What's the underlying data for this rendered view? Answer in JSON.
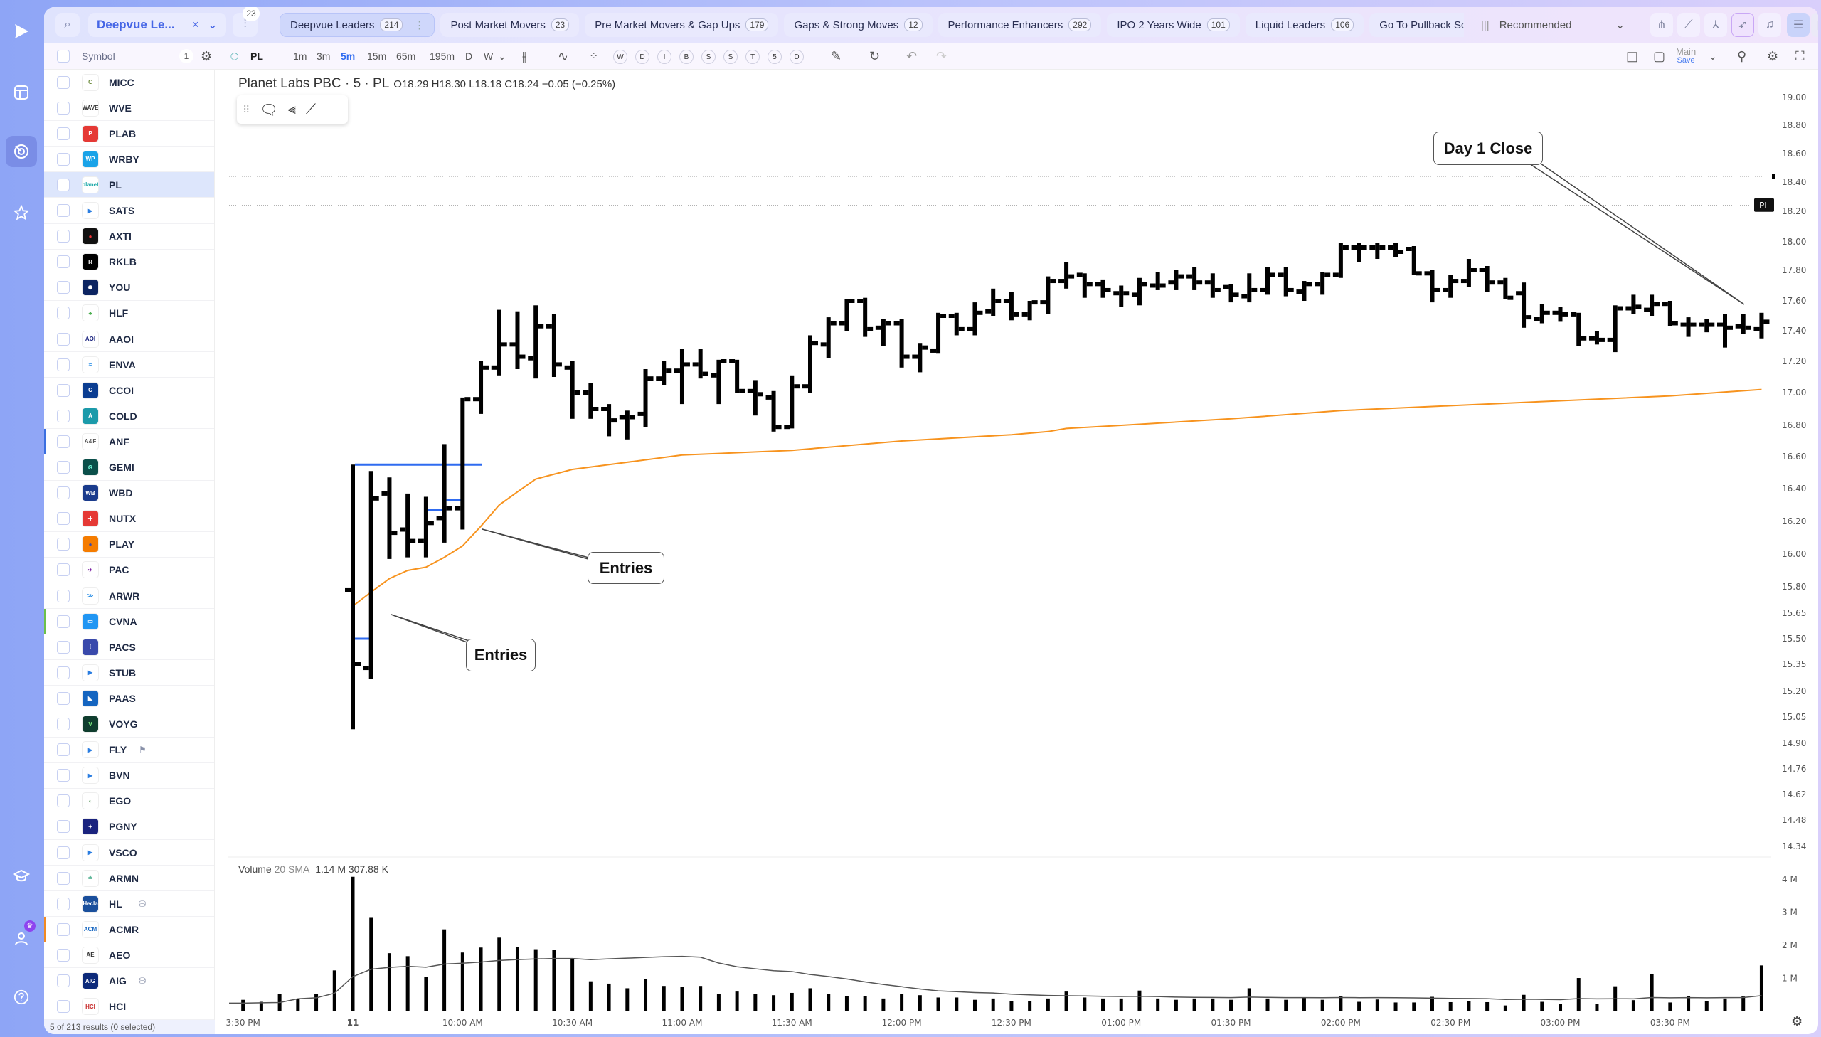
{
  "rail": {
    "items": [
      {
        "icon": "play-logo-icon"
      },
      {
        "icon": "layout-grid-icon"
      },
      {
        "icon": "radar-icon",
        "active": true
      },
      {
        "icon": "star-icon"
      },
      {
        "icon": "graduation-cap-icon"
      },
      {
        "icon": "user-crown-icon"
      },
      {
        "icon": "help-icon"
      }
    ]
  },
  "topbar": {
    "watchlist": "Deepvue Le...",
    "filter_badge": "23",
    "tabs": [
      {
        "label": "Deepvue Leaders",
        "count": "214",
        "active": true
      },
      {
        "label": "Post Market Movers",
        "count": "23"
      },
      {
        "label": "Pre Market Movers & Gap Ups",
        "count": "179"
      },
      {
        "label": "Gaps & Strong Moves",
        "count": "12"
      },
      {
        "label": "Performance Enhancers",
        "count": "292"
      },
      {
        "label": "IPO 2 Years Wide",
        "count": "101"
      },
      {
        "label": "Liquid Leaders",
        "count": "106"
      },
      {
        "label": "Go To Pullback Scr",
        "count": ""
      }
    ],
    "sort": "Recommended"
  },
  "toolbar": {
    "symbol_header": "Symbol",
    "selected_count": "1",
    "ticker": "PL",
    "intervals": [
      "1m",
      "3m",
      "5m",
      "15m",
      "65m",
      "195m",
      "D",
      "W"
    ],
    "active_interval": "5m",
    "study_buttons": [
      "W",
      "D",
      "I",
      "B",
      "S",
      "S",
      "T",
      "5",
      "D"
    ],
    "layout_name": "Main",
    "layout_save": "Save"
  },
  "sidebar": {
    "items": [
      {
        "symbol": "MICC",
        "logo": "C",
        "color": "#ffffff",
        "fg": "#6a8a3a"
      },
      {
        "symbol": "WVE",
        "logo": "WAVE",
        "color": "#ffffff",
        "fg": "#333"
      },
      {
        "symbol": "PLAB",
        "logo": "P",
        "color": "#e53935",
        "fg": "#fff"
      },
      {
        "symbol": "WRBY",
        "logo": "WP",
        "color": "#1aa3e8",
        "fg": "#fff"
      },
      {
        "symbol": "PL",
        "logo": "planet",
        "color": "#ffffff",
        "fg": "#2aa",
        "selected": true
      },
      {
        "symbol": "SATS",
        "logo": "▶",
        "color": "#ffffff",
        "fg": "#2a7de1"
      },
      {
        "symbol": "AXTI",
        "logo": "●",
        "color": "#111111",
        "fg": "#e33"
      },
      {
        "symbol": "RKLB",
        "logo": "R",
        "color": "#000000",
        "fg": "#fff"
      },
      {
        "symbol": "YOU",
        "logo": "✺",
        "color": "#0c2461",
        "fg": "#fff"
      },
      {
        "symbol": "HLF",
        "logo": "♣",
        "color": "#ffffff",
        "fg": "#4caf50"
      },
      {
        "symbol": "AAOI",
        "logo": "AOI",
        "color": "#ffffff",
        "fg": "#1a237e"
      },
      {
        "symbol": "ENVA",
        "logo": "≈",
        "color": "#ffffff",
        "fg": "#1e88e5"
      },
      {
        "symbol": "CCOI",
        "logo": "C",
        "color": "#0b3d91",
        "fg": "#fff"
      },
      {
        "symbol": "COLD",
        "logo": "A",
        "color": "#1b9aaa",
        "fg": "#fff"
      },
      {
        "symbol": "ANF",
        "logo": "A&F",
        "color": "#ffffff",
        "fg": "#555",
        "marker": "#3b6fe0"
      },
      {
        "symbol": "GEMI",
        "logo": "G",
        "color": "#0b4f4a",
        "fg": "#7fd"
      },
      {
        "symbol": "WBD",
        "logo": "WB",
        "color": "#1a3b8c",
        "fg": "#fff"
      },
      {
        "symbol": "NUTX",
        "logo": "✚",
        "color": "#e53935",
        "fg": "#fff"
      },
      {
        "symbol": "PLAY",
        "logo": "●",
        "color": "#f57c00",
        "fg": "#3949ab"
      },
      {
        "symbol": "PAC",
        "logo": "✈",
        "color": "#ffffff",
        "fg": "#7b1fa2"
      },
      {
        "symbol": "ARWR",
        "logo": "≫",
        "color": "#ffffff",
        "fg": "#1e88e5"
      },
      {
        "symbol": "CVNA",
        "logo": "▭",
        "color": "#2196f3",
        "fg": "#fff",
        "marker": "#6cc04a"
      },
      {
        "symbol": "PACS",
        "logo": "⁞",
        "color": "#3949ab",
        "fg": "#fff"
      },
      {
        "symbol": "STUB",
        "logo": "▶",
        "color": "#ffffff",
        "fg": "#2a7de1"
      },
      {
        "symbol": "PAAS",
        "logo": "◣",
        "color": "#1565c0",
        "fg": "#fff"
      },
      {
        "symbol": "VOYG",
        "logo": "V",
        "color": "#0f3d2e",
        "fg": "#8f8"
      },
      {
        "symbol": "FLY",
        "logo": "▶",
        "color": "#ffffff",
        "fg": "#2a7de1",
        "extra": "⚑"
      },
      {
        "symbol": "BVN",
        "logo": "▶",
        "color": "#ffffff",
        "fg": "#2a7de1"
      },
      {
        "symbol": "EGO",
        "logo": "◐",
        "color": "#ffffff",
        "fg": "#2e7d32"
      },
      {
        "symbol": "PGNY",
        "logo": "✦",
        "color": "#1a237e",
        "fg": "#fff"
      },
      {
        "symbol": "VSCO",
        "logo": "▶",
        "color": "#ffffff",
        "fg": "#2a7de1"
      },
      {
        "symbol": "ARMN",
        "logo": "≗",
        "color": "#ffffff",
        "fg": "#4a8"
      },
      {
        "symbol": "HL",
        "logo": "Hecla",
        "color": "#1a4f9c",
        "fg": "#fff",
        "extra": "⛁"
      },
      {
        "symbol": "ACMR",
        "logo": "ACM",
        "color": "#ffffff",
        "fg": "#1565c0",
        "marker": "#f08a24"
      },
      {
        "symbol": "AEO",
        "logo": "AE",
        "color": "#ffffff",
        "fg": "#333"
      },
      {
        "symbol": "AIG",
        "logo": "AIG",
        "color": "#0d2a7a",
        "fg": "#fff",
        "extra": "⛁"
      },
      {
        "symbol": "HCI",
        "logo": "HCI",
        "color": "#ffffff",
        "fg": "#c62828"
      }
    ],
    "footer": "5 of 213 results (0 selected)"
  },
  "chart": {
    "title": "Planet Labs PBC · 5 · PL",
    "ohlc": "O18.29 H18.30 L18.18 C18.24 −0.05 (−0.25%)",
    "volume_label": "Volume",
    "volume_sma": "20 SMA",
    "volume_value": "1.14 M",
    "volume_sma_value": "307.88 K",
    "annotations": [
      "Entries",
      "Entries",
      "Day 1 Close"
    ],
    "price_tag": "PL"
  },
  "chart_data": {
    "type": "ohlc",
    "interval": "5m",
    "price_axis_ticks": [
      "19.00",
      "18.80",
      "18.60",
      "18.40",
      "18.20",
      "18.00",
      "17.80",
      "17.60",
      "17.40",
      "17.20",
      "17.00",
      "16.80",
      "16.60",
      "16.40",
      "16.20",
      "16.00",
      "15.80",
      "15.65",
      "15.50",
      "15.35",
      "15.20",
      "15.05",
      "14.90",
      "14.76",
      "14.62",
      "14.48",
      "14.34"
    ],
    "volume_axis_ticks": [
      "4 M",
      "3 M",
      "2 M",
      "1 M"
    ],
    "time_axis_ticks": [
      [
        "15:30p",
        "3:30 PM"
      ],
      [
        "09:30",
        "11"
      ],
      [
        "10:00",
        "10:00 AM"
      ],
      [
        "10:30",
        "10:30 AM"
      ],
      [
        "11:00",
        "11:00 AM"
      ],
      [
        "11:30",
        "11:30 AM"
      ],
      [
        "12:00",
        "12:00 PM"
      ],
      [
        "12:30",
        "12:30 PM"
      ],
      [
        "13:00",
        "01:00 PM"
      ],
      [
        "13:30",
        "01:30 PM"
      ],
      [
        "14:00",
        "02:00 PM"
      ],
      [
        "14:30",
        "02:30 PM"
      ],
      [
        "15:00",
        "03:00 PM"
      ],
      [
        "15:30",
        "03:30 PM"
      ]
    ],
    "prior_session_volume_m": [
      [
        "15:30p",
        0.35
      ],
      [
        "15:35p",
        0.29
      ],
      [
        "15:40p",
        0.52
      ],
      [
        "15:45p",
        0.37
      ],
      [
        "15:50p",
        0.52
      ],
      [
        "15:55p",
        1.24
      ]
    ],
    "columns": [
      "time",
      "open",
      "high",
      "low",
      "close",
      "volume_m"
    ],
    "bars": [
      [
        "09:30",
        15.78,
        16.55,
        14.98,
        15.35,
        4.07
      ],
      [
        "09:35",
        15.33,
        16.51,
        15.27,
        16.34,
        2.85
      ],
      [
        "09:40",
        16.37,
        16.47,
        15.97,
        16.13,
        1.76
      ],
      [
        "09:45",
        16.15,
        16.37,
        15.98,
        16.08,
        1.67
      ],
      [
        "09:50",
        16.08,
        16.35,
        15.98,
        16.19,
        1.05
      ],
      [
        "09:55",
        16.22,
        16.68,
        16.07,
        16.28,
        2.48
      ],
      [
        "10:00",
        16.28,
        16.97,
        16.15,
        16.96,
        1.78
      ],
      [
        "10:05",
        16.96,
        17.2,
        16.87,
        17.16,
        1.93
      ],
      [
        "10:10",
        17.16,
        17.54,
        17.11,
        17.31,
        2.23
      ],
      [
        "10:15",
        17.31,
        17.53,
        17.15,
        17.23,
        1.95
      ],
      [
        "10:20",
        17.22,
        17.57,
        17.09,
        17.43,
        1.88
      ],
      [
        "10:25",
        17.43,
        17.51,
        17.1,
        17.18,
        1.86
      ],
      [
        "10:30",
        17.16,
        17.2,
        16.84,
        17.0,
        1.58
      ],
      [
        "10:35",
        17.0,
        17.06,
        16.84,
        16.9,
        0.91
      ],
      [
        "10:40",
        16.9,
        16.93,
        16.73,
        16.83,
        0.84
      ],
      [
        "10:45",
        16.85,
        16.89,
        16.71,
        16.85,
        0.7
      ],
      [
        "10:50",
        16.87,
        17.15,
        16.79,
        17.09,
        0.98
      ],
      [
        "10:55",
        17.09,
        17.2,
        17.05,
        17.14,
        0.77
      ],
      [
        "11:00",
        17.14,
        17.28,
        16.93,
        17.18,
        0.74
      ],
      [
        "11:05",
        17.18,
        17.28,
        17.09,
        17.12,
        0.77
      ],
      [
        "11:10",
        17.11,
        17.21,
        16.93,
        17.2,
        0.53
      ],
      [
        "11:15",
        17.2,
        17.21,
        17.0,
        17.01,
        0.6
      ],
      [
        "11:20",
        17.01,
        17.08,
        16.86,
        16.99,
        0.53
      ],
      [
        "11:25",
        16.97,
        17.01,
        16.76,
        16.79,
        0.49
      ],
      [
        "11:30",
        16.79,
        17.11,
        16.78,
        17.04,
        0.56
      ],
      [
        "11:35",
        17.04,
        17.37,
        17.0,
        17.32,
        0.7
      ],
      [
        "11:40",
        17.31,
        17.49,
        17.22,
        17.45,
        0.53
      ],
      [
        "11:45",
        17.45,
        17.61,
        17.4,
        17.6,
        0.46
      ],
      [
        "11:50",
        17.6,
        17.62,
        17.36,
        17.41,
        0.46
      ],
      [
        "11:55",
        17.42,
        17.48,
        17.3,
        17.45,
        0.39
      ],
      [
        "12:00",
        17.45,
        17.48,
        17.16,
        17.23,
        0.53
      ],
      [
        "12:05",
        17.23,
        17.32,
        17.13,
        17.29,
        0.49
      ],
      [
        "12:10",
        17.27,
        17.52,
        17.25,
        17.5,
        0.42
      ],
      [
        "12:15",
        17.5,
        17.52,
        17.37,
        17.41,
        0.42
      ],
      [
        "12:20",
        17.41,
        17.59,
        17.37,
        17.52,
        0.35
      ],
      [
        "12:25",
        17.53,
        17.68,
        17.5,
        17.6,
        0.39
      ],
      [
        "12:30",
        17.6,
        17.66,
        17.47,
        17.51,
        0.32
      ],
      [
        "12:35",
        17.51,
        17.6,
        17.47,
        17.59,
        0.32
      ],
      [
        "12:40",
        17.59,
        17.76,
        17.51,
        17.73,
        0.39
      ],
      [
        "12:45",
        17.73,
        17.86,
        17.68,
        17.76,
        0.6
      ],
      [
        "12:50",
        17.77,
        17.78,
        17.62,
        17.71,
        0.42
      ],
      [
        "12:55",
        17.71,
        17.74,
        17.62,
        17.67,
        0.39
      ],
      [
        "13:00",
        17.65,
        17.7,
        17.56,
        17.65,
        0.39
      ],
      [
        "13:05",
        17.64,
        17.75,
        17.57,
        17.71,
        0.63
      ],
      [
        "13:10",
        17.7,
        17.79,
        17.67,
        17.7,
        0.39
      ],
      [
        "13:15",
        17.72,
        17.8,
        17.67,
        17.76,
        0.35
      ],
      [
        "13:20",
        17.76,
        17.82,
        17.67,
        17.72,
        0.39
      ],
      [
        "13:25",
        17.72,
        17.78,
        17.62,
        17.67,
        0.39
      ],
      [
        "13:30",
        17.69,
        17.71,
        17.59,
        17.64,
        0.35
      ],
      [
        "13:35",
        17.63,
        17.78,
        17.59,
        17.67,
        0.7
      ],
      [
        "13:40",
        17.67,
        17.82,
        17.64,
        17.77,
        0.39
      ],
      [
        "13:45",
        17.77,
        17.82,
        17.63,
        17.67,
        0.35
      ],
      [
        "13:50",
        17.66,
        17.73,
        17.6,
        17.71,
        0.42
      ],
      [
        "13:55",
        17.71,
        17.79,
        17.64,
        17.77,
        0.35
      ],
      [
        "14:00",
        17.77,
        17.99,
        17.75,
        17.96,
        0.46
      ],
      [
        "14:05",
        17.96,
        17.99,
        17.86,
        17.96,
        0.29
      ],
      [
        "14:10",
        17.96,
        17.99,
        17.88,
        17.96,
        0.36
      ],
      [
        "14:15",
        17.96,
        17.99,
        17.89,
        17.93,
        0.27
      ],
      [
        "14:20",
        17.95,
        17.97,
        17.77,
        17.78,
        0.27
      ],
      [
        "14:25",
        17.78,
        17.8,
        17.59,
        17.67,
        0.44
      ],
      [
        "14:30",
        17.67,
        17.77,
        17.62,
        17.73,
        0.28
      ],
      [
        "14:35",
        17.73,
        17.88,
        17.69,
        17.8,
        0.31
      ],
      [
        "14:40",
        17.8,
        17.83,
        17.66,
        17.72,
        0.28
      ],
      [
        "14:45",
        17.72,
        17.75,
        17.61,
        17.62,
        0.18
      ],
      [
        "14:50",
        17.65,
        17.72,
        17.42,
        17.49,
        0.5
      ],
      [
        "14:55",
        17.48,
        17.58,
        17.45,
        17.52,
        0.29
      ],
      [
        "15:00",
        17.52,
        17.56,
        17.46,
        17.51,
        0.22
      ],
      [
        "15:05",
        17.51,
        17.52,
        17.3,
        17.35,
        1.01
      ],
      [
        "15:10",
        17.35,
        17.4,
        17.31,
        17.34,
        0.22
      ],
      [
        "15:15",
        17.34,
        17.57,
        17.26,
        17.55,
        0.76
      ],
      [
        "15:20",
        17.55,
        17.64,
        17.51,
        17.56,
        0.34
      ],
      [
        "15:25",
        17.54,
        17.64,
        17.5,
        17.58,
        1.14
      ],
      [
        "15:30",
        17.58,
        17.6,
        17.43,
        17.45,
        0.27
      ],
      [
        "15:35",
        17.44,
        17.49,
        17.36,
        17.44,
        0.46
      ],
      [
        "15:40",
        17.44,
        17.48,
        17.39,
        17.44,
        0.32
      ],
      [
        "15:45",
        17.44,
        17.51,
        17.29,
        17.42,
        0.39
      ],
      [
        "15:50",
        17.43,
        17.51,
        17.38,
        17.42,
        0.45
      ],
      [
        "15:55",
        17.41,
        17.52,
        17.35,
        17.46,
        1.39
      ]
    ],
    "orange_line": [
      [
        "09:30",
        15.69
      ],
      [
        "09:35",
        15.77
      ],
      [
        "09:40",
        15.85
      ],
      [
        "09:45",
        15.9
      ],
      [
        "09:50",
        15.92
      ],
      [
        "09:55",
        15.98
      ],
      [
        "10:00",
        16.05
      ],
      [
        "10:05",
        16.17
      ],
      [
        "10:10",
        16.3
      ],
      [
        "10:15",
        16.38
      ],
      [
        "10:20",
        16.46
      ],
      [
        "10:30",
        16.52
      ],
      [
        "10:40",
        16.55
      ],
      [
        "11:00",
        16.61
      ],
      [
        "11:30",
        16.64
      ],
      [
        "12:00",
        16.7
      ],
      [
        "12:30",
        16.74
      ],
      [
        "12:40",
        16.76
      ],
      [
        "12:45",
        16.78
      ],
      [
        "13:00",
        16.8
      ],
      [
        "13:30",
        16.84
      ],
      [
        "14:00",
        16.89
      ],
      [
        "14:30",
        16.92
      ],
      [
        "15:00",
        16.95
      ],
      [
        "15:30",
        16.98
      ],
      [
        "15:55",
        17.02
      ]
    ],
    "orange_color": "#f7931e",
    "blue_levels": [
      {
        "price": 16.55,
        "from": "09:30",
        "to": "10:05"
      },
      {
        "price": 15.5,
        "from": "09:30",
        "to": "09:35"
      },
      {
        "price": 16.27,
        "from": "09:50",
        "to": "09:55"
      },
      {
        "price": 16.33,
        "from": "09:55",
        "to": "10:00"
      }
    ],
    "blue_color": "#2f6bf0",
    "gray_levels": [
      18.44,
      18.24
    ],
    "volume_sma_period": 20
  }
}
